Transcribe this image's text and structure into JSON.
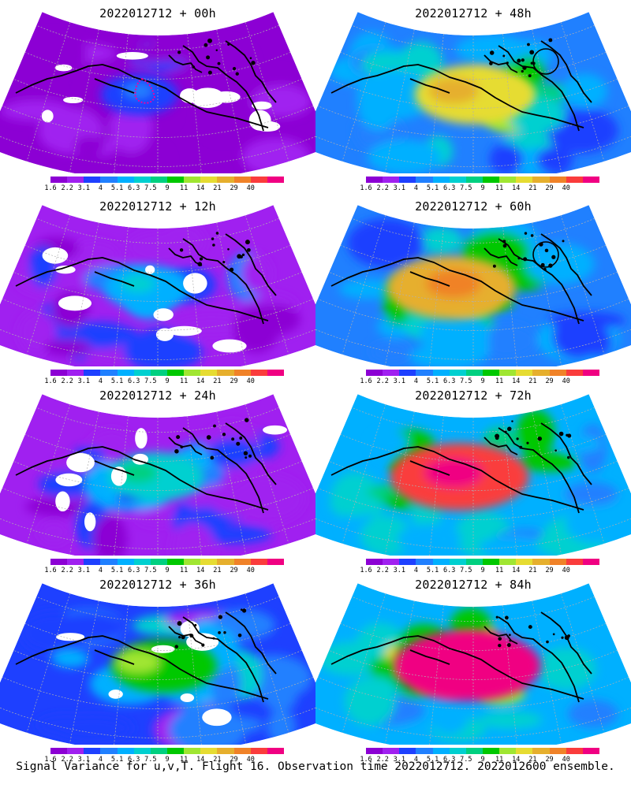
{
  "panels": [
    {
      "title": "2022012712 + 00h",
      "intensity": 0.15,
      "blanks": true,
      "circle": false
    },
    {
      "title": "2022012712 + 48h",
      "intensity": 0.6,
      "blanks": false,
      "circle": true
    },
    {
      "title": "2022012712 + 12h",
      "intensity": 0.25,
      "blanks": true,
      "circle": false
    },
    {
      "title": "2022012712 + 60h",
      "intensity": 0.7,
      "blanks": false,
      "circle": true
    },
    {
      "title": "2022012712 + 24h",
      "intensity": 0.35,
      "blanks": true,
      "circle": false
    },
    {
      "title": "2022012712 + 72h",
      "intensity": 0.8,
      "blanks": false,
      "circle": false
    },
    {
      "title": "2022012712 + 36h",
      "intensity": 0.45,
      "blanks": true,
      "circle": false
    },
    {
      "title": "2022012712 + 84h",
      "intensity": 0.88,
      "blanks": false,
      "circle": false
    }
  ],
  "colorbar": {
    "labels": [
      "1.6",
      "2.2",
      "3.1",
      "4",
      "5.1",
      "6.3",
      "7.5",
      "9",
      "11",
      "14",
      "21",
      "29",
      "40"
    ],
    "colors": [
      "#8c00d4",
      "#a020f0",
      "#1e40ff",
      "#2080ff",
      "#00b0ff",
      "#00d0d0",
      "#00d080",
      "#00c800",
      "#a0e632",
      "#e6dc32",
      "#e6af2d",
      "#f08228",
      "#fa3c3c",
      "#f00082"
    ]
  },
  "caption": "Signal Variance for u,v,T. Flight 16. Observation time 2022012712. 2022012600 ensemble."
}
